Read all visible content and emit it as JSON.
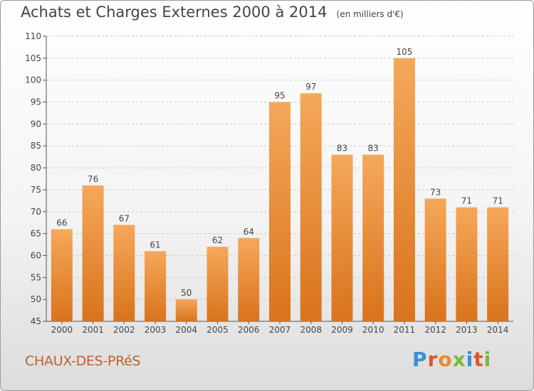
{
  "chart_data": {
    "type": "bar",
    "title": "Achats et Charges Externes 2000 à 2014",
    "subtitle": "(en milliers d'€)",
    "categories": [
      "2000",
      "2001",
      "2002",
      "2003",
      "2004",
      "2005",
      "2006",
      "2007",
      "2008",
      "2009",
      "2010",
      "2011",
      "2012",
      "2013",
      "2014"
    ],
    "values": [
      66,
      76,
      67,
      61,
      50,
      62,
      64,
      95,
      97,
      83,
      83,
      105,
      73,
      71,
      71
    ],
    "ylim": [
      45,
      110
    ],
    "yticks": [
      45,
      50,
      55,
      60,
      65,
      70,
      75,
      80,
      85,
      90,
      95,
      100,
      105,
      110
    ],
    "grid": true,
    "bar_color_top": "#f5a85a",
    "bar_color_bottom": "#d9731c"
  },
  "commune": "CHAUX-DES-PRéS",
  "logo": {
    "text": "Proxiti",
    "colors": [
      "#3b8fd6",
      "#e0542a",
      "#e88b2a",
      "#7bb83a",
      "#3b8fd6",
      "#e0542a",
      "#7bb83a"
    ]
  }
}
